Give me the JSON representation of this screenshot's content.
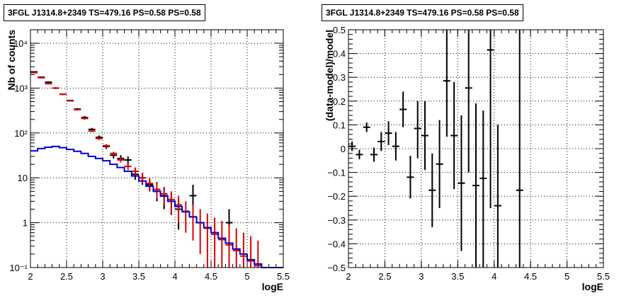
{
  "chart_data": [
    {
      "type": "scatter",
      "title": "3FGL J1314.8+2349 TS=479.16 PS=0.58 PS=0.58",
      "xlabel": "logE",
      "ylabel": "Nb of counts",
      "xlim": [
        2,
        5.5
      ],
      "ylim": [
        0.1,
        20000
      ],
      "ylog": true,
      "grid": true,
      "x_tick_labels": [
        "2",
        "2.5",
        "3",
        "3.5",
        "4",
        "4.5",
        "5",
        "5.5"
      ],
      "y_tick_labels": [
        "10⁻¹",
        "1",
        "10",
        "10²",
        "10³",
        "10⁴"
      ],
      "series": [
        {
          "kind": "data_points",
          "color": "#000000",
          "x": [
            2.05,
            2.15,
            2.25,
            2.35,
            2.45,
            2.55,
            2.65,
            2.75,
            2.85,
            2.95,
            3.05,
            3.15,
            3.25,
            3.35,
            3.45,
            3.55,
            3.65,
            3.75,
            3.85,
            3.95,
            4.05,
            4.25,
            4.75
          ],
          "y": [
            2300,
            1750,
            1350,
            1000,
            730,
            530,
            340,
            220,
            120,
            80,
            50,
            32,
            27,
            25,
            12,
            10,
            7,
            5.5,
            4,
            3,
            2,
            4,
            1
          ],
          "y_low": [
            2250,
            1700,
            1300,
            950,
            700,
            510,
            320,
            200,
            110,
            72,
            44,
            27,
            22,
            20,
            9,
            7,
            5,
            3,
            2,
            1.5,
            0.7,
            2,
            0.3
          ],
          "y_high": [
            2350,
            1800,
            1400,
            1050,
            760,
            550,
            360,
            240,
            130,
            88,
            56,
            37,
            32,
            30,
            15,
            13,
            9,
            8,
            6,
            4.5,
            3.5,
            7,
            2
          ]
        },
        {
          "kind": "model_points",
          "color": "#e00000",
          "x": [
            2.05,
            2.15,
            2.25,
            2.35,
            2.45,
            2.55,
            2.65,
            2.75,
            2.85,
            2.95,
            3.05,
            3.15,
            3.25,
            3.35,
            3.45,
            3.55,
            3.65,
            3.75,
            3.85,
            3.95,
            4.05,
            4.15,
            4.25,
            4.35,
            4.45,
            4.55,
            4.65,
            4.75,
            4.85,
            4.95,
            5.05,
            5.15
          ],
          "y": [
            2200,
            1700,
            1250,
            1000,
            730,
            520,
            330,
            210,
            110,
            75,
            52,
            35,
            25,
            18,
            14,
            10,
            7.5,
            5.5,
            4.4,
            3.3,
            2.5,
            1.8,
            1.35,
            1.0,
            0.75,
            0.55,
            0.42,
            0.32,
            0.24,
            0.18,
            0.14,
            0.11
          ],
          "y_low": [
            2150,
            1650,
            1200,
            960,
            700,
            500,
            315,
            200,
            105,
            70,
            48,
            32,
            22,
            15,
            11,
            7.5,
            5,
            3.5,
            2.5,
            1.6,
            1.0,
            0.6,
            0.4,
            0.2,
            0.1,
            0.1,
            0.1,
            0.1,
            0.1,
            0.1,
            0.1,
            0.1
          ],
          "y_high": [
            2250,
            1750,
            1300,
            1040,
            760,
            540,
            345,
            220,
            115,
            80,
            56,
            38,
            28,
            21,
            17,
            13,
            10,
            7.5,
            6.3,
            5,
            4,
            3,
            2.5,
            2,
            1.6,
            1.3,
            1.1,
            0.9,
            0.75,
            0.6,
            0.5,
            0.4
          ]
        },
        {
          "kind": "background_histogram",
          "color": "#0000d0",
          "bin_edges": [
            2.0,
            2.1,
            2.2,
            2.3,
            2.4,
            2.5,
            2.6,
            2.7,
            2.8,
            2.9,
            3.0,
            3.1,
            3.2,
            3.3,
            3.4,
            3.5,
            3.6,
            3.7,
            3.8,
            3.9,
            4.0,
            4.1,
            4.2,
            4.3,
            4.4,
            4.5,
            4.6,
            4.7,
            4.8,
            4.9,
            5.0,
            5.1,
            5.2,
            5.3,
            5.4,
            5.5
          ],
          "values": [
            40,
            45,
            48,
            50,
            47,
            43,
            39,
            35,
            30,
            27,
            24,
            20,
            17,
            14,
            11,
            8.5,
            6.5,
            5,
            3.9,
            3.0,
            2.3,
            1.75,
            1.35,
            1.0,
            0.78,
            0.6,
            0.45,
            0.35,
            0.26,
            0.2,
            0.15,
            0.12,
            0.1,
            0.1,
            0.1
          ]
        }
      ]
    },
    {
      "type": "scatter",
      "title": "3FGL J1314.8+2349 TS=479.16 PS=0.58 PS=0.58",
      "xlabel": "logE",
      "ylabel": "(data-model)/model",
      "xlim": [
        2,
        5.5
      ],
      "ylim": [
        -0.5,
        0.5
      ],
      "grid": true,
      "x_tick_labels": [
        "2",
        "2.5",
        "3",
        "3.5",
        "4",
        "4.5",
        "5",
        "5.5"
      ],
      "y_tick_labels": [
        "−0.5",
        "−0.4",
        "−0.3",
        "−0.2",
        "−0.1",
        "0",
        "0.1",
        "0.2",
        "0.3",
        "0.4",
        "0.5"
      ],
      "series": [
        {
          "kind": "residuals",
          "color": "#000000",
          "x": [
            2.05,
            2.15,
            2.25,
            2.35,
            2.45,
            2.55,
            2.65,
            2.75,
            2.85,
            2.95,
            3.05,
            3.15,
            3.25,
            3.35,
            3.45,
            3.55,
            3.65,
            3.75,
            3.85,
            3.95,
            4.05,
            4.35
          ],
          "y": [
            0.01,
            -0.025,
            0.09,
            -0.025,
            0.03,
            0.065,
            0.01,
            0.165,
            -0.12,
            0.085,
            0.055,
            -0.175,
            -0.065,
            0.285,
            0.055,
            -0.145,
            0.255,
            -0.155,
            -0.125,
            0.415,
            -0.24,
            -0.175
          ],
          "y_low": [
            -0.01,
            -0.045,
            0.07,
            -0.055,
            -0.01,
            0.015,
            -0.05,
            0.09,
            -0.21,
            -0.04,
            -0.09,
            -0.33,
            -0.25,
            0.05,
            -0.17,
            -0.43,
            -0.1,
            -0.5,
            -0.5,
            -0.25,
            -0.5,
            -0.5
          ],
          "y_high": [
            0.03,
            -0.005,
            0.11,
            0.005,
            0.07,
            0.115,
            0.07,
            0.24,
            -0.03,
            0.2,
            0.2,
            -0.02,
            0.12,
            0.5,
            0.28,
            0.14,
            0.5,
            0.19,
            0.16,
            0.5,
            0.1,
            0.5
          ]
        }
      ]
    }
  ]
}
